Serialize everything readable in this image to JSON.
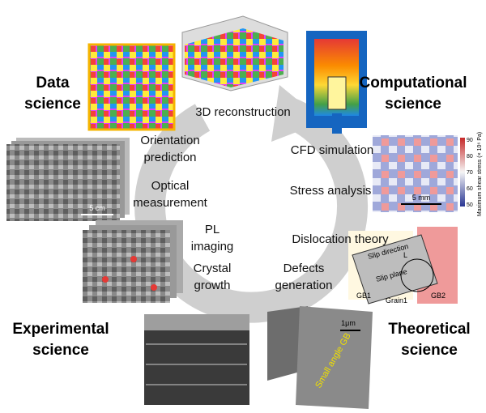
{
  "quadrants": {
    "data_science": [
      "Data",
      "science"
    ],
    "computational_science": [
      "Computational",
      "science"
    ],
    "experimental_science": [
      "Experimental",
      "science"
    ],
    "theoretical_science": [
      "Theoretical",
      "science"
    ]
  },
  "cycle_steps": {
    "reconstruction": [
      "3D reconstruction"
    ],
    "orientation": [
      "Orientation",
      "prediction"
    ],
    "optical": [
      "Optical",
      "measurement"
    ],
    "pl": [
      "PL",
      "imaging"
    ],
    "crystal": [
      "Crystal",
      "growth"
    ],
    "defects": [
      "Defects",
      "generation"
    ],
    "dislocation": [
      "Dislocation theory"
    ],
    "stress": [
      "Stress analysis"
    ],
    "cfd": [
      "CFD simulation"
    ]
  },
  "image_labels": {
    "sem_scale": "5 cm",
    "stress_scale": "5 mm",
    "stress_colorbar_title": "Maximum shear stress (× 10⁶ Pa)",
    "stress_colorbar_ticks": [
      "90",
      "80",
      "70",
      "60",
      "50"
    ],
    "slip_direction": "Slip direction",
    "slip_plane": "Slip plane",
    "dislocation_L": "L",
    "gb1": "GB1",
    "grain1": "Grain1",
    "gb2": "GB2",
    "defect_scale": "1μm",
    "small_angle_gb": "Small angle GB"
  }
}
